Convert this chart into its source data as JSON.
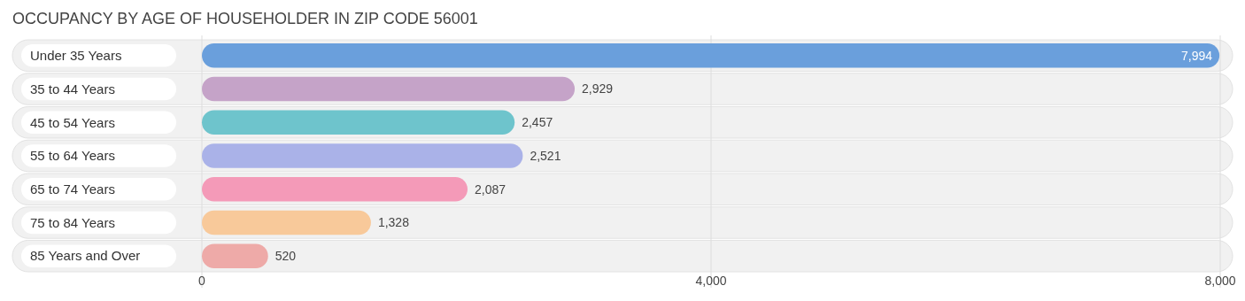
{
  "chart_data": {
    "type": "bar",
    "orientation": "horizontal",
    "title": "OCCUPANCY BY AGE OF HOUSEHOLDER IN ZIP CODE 56001",
    "categories": [
      "Under 35 Years",
      "35 to 44 Years",
      "45 to 54 Years",
      "55 to 64 Years",
      "65 to 74 Years",
      "75 to 84 Years",
      "85 Years and Over"
    ],
    "values": [
      7994,
      2929,
      2457,
      2521,
      2087,
      1328,
      520
    ],
    "colors": [
      "#6a9fdc",
      "#c5a3c8",
      "#6ec4cc",
      "#aab2e8",
      "#f49ab8",
      "#f8c99a",
      "#eeaaa8"
    ],
    "xlim": [
      0,
      8000
    ],
    "xticks": [
      0,
      {
        "value": 4000,
        "label": "4,000"
      },
      {
        "value": 8000,
        "label": "8,000"
      }
    ],
    "value_labels": [
      "7,994",
      "2,929",
      "2,457",
      "2,521",
      "2,087",
      "1,328",
      "520"
    ],
    "grid": "x"
  }
}
